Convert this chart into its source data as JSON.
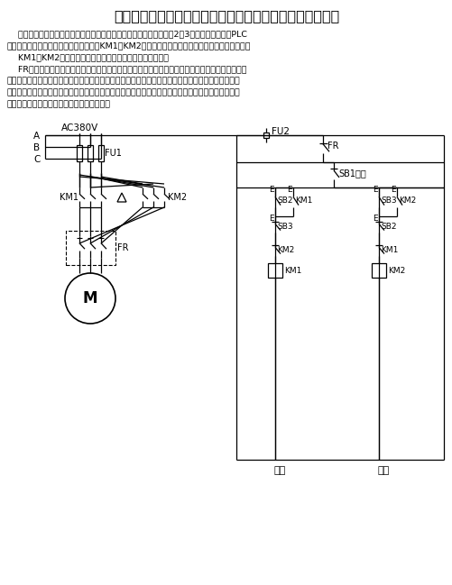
{
  "title": "三相异步电动机正反转控制的主电路和继电器控制电路图：",
  "para1": "    下图是三相异步电动机正反转控制的主电路和继电器控制电路图，图2与3是功能与它相同的PLC",
  "para2": "控制系统的外部接线图和梯形图。其中，KM1和KM2分别是控制正转运行和反转运行的交流接触器。",
  "para3": "    KM1和KM2分别是控制正转运行和反转运行的交流接触器。",
  "para4": "    FR是作过载保护用的热继电器，异步电动机长期严重过载时，经过一定延时，热继电器的常闭触点",
  "para5": "断开，常开触点闭合。其常闭触点与接触器的线圈串联，过载时接触器线圈断电，电机停止运行，起到",
  "para6": "保护作用。有的热继电器需要手动复位，即热继电器动作后要按一下它自带的复位按钮，其触点才会恢",
  "para7": "复原状，即常用开触点断开，常闭触点闭合。",
  "bg": "#ffffff",
  "black": "#000000"
}
